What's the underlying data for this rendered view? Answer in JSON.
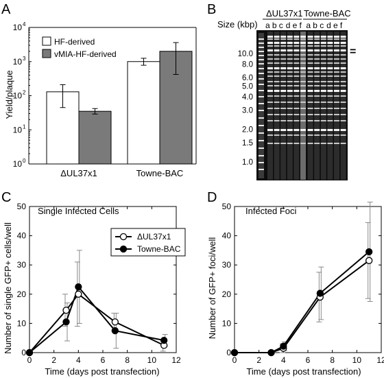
{
  "panels": {
    "a": {
      "letter": "A"
    },
    "b": {
      "letter": "B",
      "size_label": "Size (kbp)",
      "group1": "ΔUL37x1",
      "group2": "Towne-BAC",
      "lane_letters": [
        "a",
        "b",
        "c",
        "d",
        "e",
        "f",
        "a",
        "b",
        "c",
        "d",
        "e",
        "f"
      ],
      "markers": [
        "10.0",
        "8.0",
        "6.0",
        "5.0",
        "4.0",
        "3.0",
        "2.0",
        "1.5",
        "1.0"
      ],
      "marker_kbp": [
        10.0,
        8.0,
        6.0,
        5.0,
        4.0,
        3.0,
        2.0,
        1.5,
        1.0
      ],
      "annotation": "="
    },
    "c": {
      "letter": "C"
    },
    "d": {
      "letter": "D"
    }
  },
  "chart_data": [
    {
      "type": "bar",
      "ylabel": "Yield/plaque",
      "yscale": "log",
      "ylim": [
        1,
        10000
      ],
      "yticks": [
        1,
        10,
        100,
        1000,
        10000
      ],
      "ytick_labels": [
        "10",
        "10",
        "10",
        "10",
        "10"
      ],
      "ytick_exponents": [
        "0",
        "1",
        "2",
        "3",
        "4"
      ],
      "categories": [
        "ΔUL37x1",
        "Towne-BAC"
      ],
      "legend": "top-left",
      "series": [
        {
          "name": "HF-derived",
          "color": "#ffffff",
          "values": [
            130,
            1000
          ],
          "err_low": [
            45,
            780
          ],
          "err_high": [
            210,
            1250
          ]
        },
        {
          "name": "vMIA-HF-derived",
          "color": "#7a7a7a",
          "values": [
            35,
            2000
          ],
          "err_low": [
            29,
            420
          ],
          "err_high": [
            42,
            3600
          ]
        }
      ]
    },
    {
      "type": "line",
      "title": "Single Infected Cells",
      "xlabel": "Time (days post transfection)",
      "ylabel": "Number of single GFP+ cells/well",
      "xlim": [
        0,
        12
      ],
      "ylim": [
        0,
        50
      ],
      "xticks": [
        0,
        2,
        4,
        6,
        8,
        10,
        12
      ],
      "yticks": [
        0,
        10,
        20,
        30,
        40,
        50
      ],
      "legend": "top-right",
      "series": [
        {
          "name": "ΔUL37x1",
          "marker": "open",
          "x": [
            0,
            3,
            4,
            7,
            11
          ],
          "y": [
            0,
            14.5,
            20,
            10.5,
            2.5
          ],
          "err": [
            0,
            5.5,
            11,
            3,
            2
          ]
        },
        {
          "name": "Towne-BAC",
          "marker": "filled",
          "x": [
            0,
            3,
            4,
            7,
            11
          ],
          "y": [
            0,
            10.5,
            22.5,
            7.5,
            4.2
          ],
          "err": [
            0,
            6.5,
            12.5,
            6,
            2
          ]
        }
      ]
    },
    {
      "type": "line",
      "title": "Infected Foci",
      "xlabel": "Time (days post transfection)",
      "ylabel": "Number of GFP+ foci/well",
      "xlim": [
        0,
        12
      ],
      "ylim": [
        0,
        50
      ],
      "xticks": [
        0,
        2,
        4,
        6,
        8,
        10,
        12
      ],
      "yticks": [
        0,
        10,
        20,
        30,
        40,
        50
      ],
      "series": [
        {
          "name": "ΔUL37x1",
          "marker": "open",
          "x": [
            0,
            3,
            4,
            7,
            11
          ],
          "y": [
            0,
            0,
            1.5,
            19,
            31.5
          ],
          "err": [
            0,
            0,
            1.5,
            8.5,
            13
          ]
        },
        {
          "name": "Towne-BAC",
          "marker": "filled",
          "x": [
            0,
            3,
            4,
            7,
            11
          ],
          "y": [
            0,
            0,
            2.2,
            20.3,
            34.5
          ],
          "err": [
            0,
            0,
            1.5,
            9,
            17
          ]
        }
      ]
    }
  ]
}
